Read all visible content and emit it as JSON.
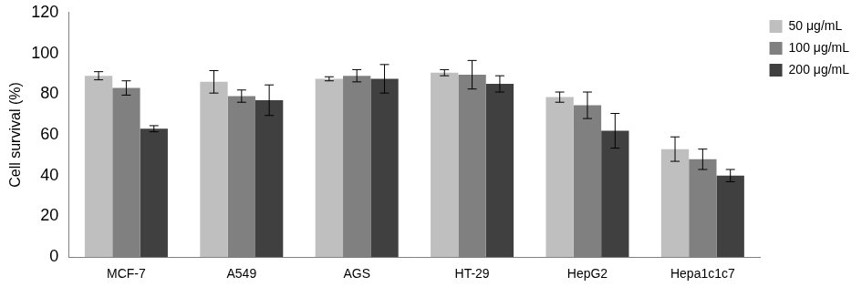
{
  "chart_data": {
    "type": "bar",
    "y_label": "Cell survival (%)",
    "categories": [
      "MCF-7",
      "A549",
      "AGS",
      "HT-29",
      "HepG2",
      "Hepa1c1c7"
    ],
    "series": [
      {
        "name": "50 μg/mL",
        "color": "#bfbfbf",
        "values": [
          89,
          86,
          87.5,
          90.5,
          78.5,
          53
        ],
        "errors": [
          2,
          5.5,
          1,
          1.5,
          2.5,
          6
        ]
      },
      {
        "name": "100 μg/mL",
        "color": "#808080",
        "values": [
          83,
          79,
          89,
          89.5,
          74.5,
          48
        ],
        "errors": [
          3.5,
          3,
          3,
          7,
          6.5,
          5
        ]
      },
      {
        "name": "200 μg/mL",
        "color": "#404040",
        "values": [
          63,
          77,
          87.5,
          85,
          62,
          40
        ],
        "errors": [
          1.5,
          7.5,
          7,
          4,
          8.5,
          3
        ]
      }
    ],
    "ylim": [
      0,
      120
    ],
    "yticks": [
      0,
      20,
      40,
      60,
      80,
      100,
      120
    ],
    "grid": false,
    "legend": "top-right"
  }
}
